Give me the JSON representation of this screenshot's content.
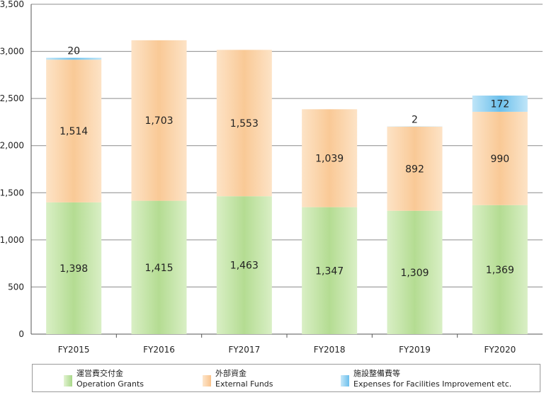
{
  "chart_data": {
    "type": "bar",
    "stacked": true,
    "categories": [
      "FY2015",
      "FY2016",
      "FY2017",
      "FY2018",
      "FY2019",
      "FY2020"
    ],
    "series": [
      {
        "name": "運営費交付金 Operation Grants",
        "color": "#c2e3a4",
        "values": [
          1398,
          1415,
          1463,
          1347,
          1309,
          1369
        ],
        "labels": [
          "1,398",
          "1,415",
          "1,463",
          "1,347",
          "1,309",
          "1,369"
        ]
      },
      {
        "name": "外部資金 External Funds",
        "color": "#fbd3aa",
        "values": [
          1514,
          1703,
          1553,
          1039,
          892,
          990
        ],
        "labels": [
          "1,514",
          "1,703",
          "1,553",
          "1,039",
          "892",
          "990"
        ]
      },
      {
        "name": "施設整備費等 Expenses for Facilities Improvement etc.",
        "color": "#8fcdef",
        "values": [
          20,
          0,
          0,
          0,
          2,
          172
        ],
        "labels": [
          "20",
          "",
          "",
          "",
          "2",
          "172"
        ]
      }
    ],
    "yticks": [
      "0",
      "500",
      "1,000",
      "1,500",
      "2,000",
      "2,500",
      "3,000",
      "3,500"
    ],
    "ylim": [
      0,
      3500
    ],
    "grid": true,
    "legend_position": "bottom"
  },
  "legend": [
    {
      "jp": "運営費交付金",
      "en": "Operation Grants",
      "color": "#c2e3a4"
    },
    {
      "jp": "外部資金",
      "en": "External Funds",
      "color": "#fbd3aa"
    },
    {
      "jp": "施設整備費等",
      "en": "Expenses for Facilities Improvement etc.",
      "color": "#8fcdef"
    }
  ]
}
